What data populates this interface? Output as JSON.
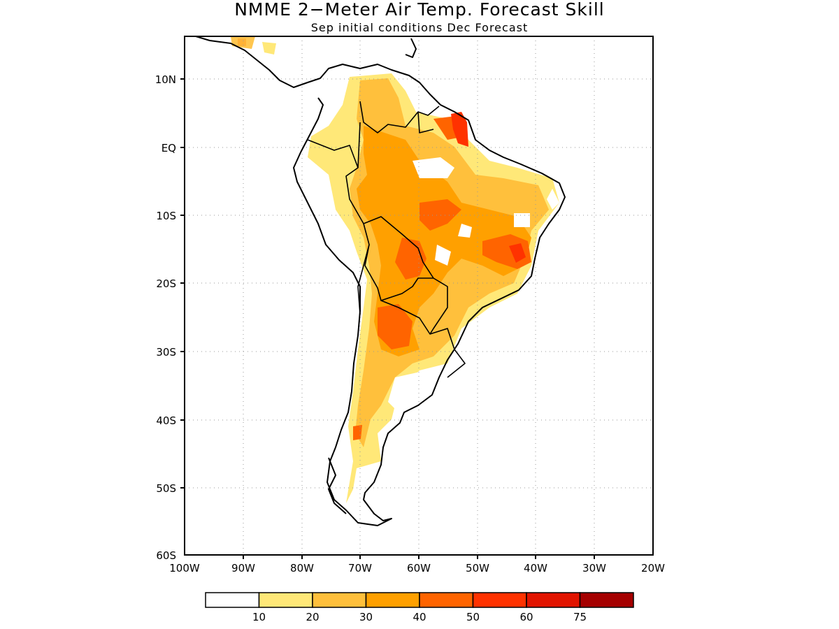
{
  "title": "NMME 2−Meter Air Temp. Forecast Skill",
  "subtitle": "Sep initial conditions  Dec Forecast",
  "lat_ticks": [
    "10N",
    "EQ",
    "10S",
    "20S",
    "30S",
    "40S",
    "50S",
    "60S"
  ],
  "lon_ticks": [
    "100W",
    "90W",
    "80W",
    "70W",
    "60W",
    "50W",
    "40W",
    "30W",
    "20W"
  ],
  "legend": {
    "colors": [
      "#ffffff",
      "#ffe878",
      "#ffc03c",
      "#ffa000",
      "#ff6400",
      "#ff3200",
      "#e11400",
      "#a50000"
    ],
    "labels": [
      "10",
      "20",
      "30",
      "40",
      "50",
      "60",
      "75"
    ]
  }
}
